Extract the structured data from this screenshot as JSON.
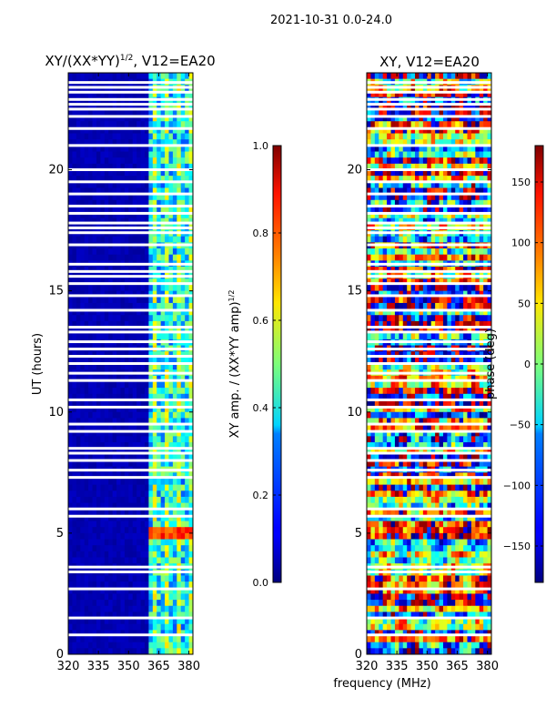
{
  "figure": {
    "suptitle": "2021-10-31 0.0-24.0",
    "xlabel_shared": "frequency (MHz)"
  },
  "chart_data": [
    {
      "type": "heatmap",
      "title_prefix": "XY/(XX*YY)",
      "title_superscript": "1/2",
      "title_suffix": ", V12=EA20",
      "ylabel": "UT (hours)",
      "xlabel": "",
      "xlim": [
        320,
        382
      ],
      "ylim": [
        0,
        24
      ],
      "xticks": [
        320,
        335,
        350,
        365,
        380
      ],
      "yticks": [
        0,
        5,
        10,
        15,
        20
      ],
      "colormap": "jet",
      "colorbar": {
        "label_main": "XY amp. / (XX*YY amp)",
        "label_superscript": "1/2",
        "range": [
          0.0,
          1.0
        ],
        "ticks": [
          "0.0",
          "0.2",
          "0.4",
          "0.6",
          "0.8",
          "1.0"
        ]
      },
      "active_band_MHz": [
        360,
        381
      ],
      "band_mean_amplitude": 0.35,
      "background_amplitude": 0.03,
      "high_amplitude_UT_range": [
        4.8,
        5.2
      ]
    },
    {
      "type": "heatmap",
      "title": "XY, V12=EA20",
      "ylabel": "",
      "xlabel": "frequency (MHz)",
      "xlim": [
        320,
        382
      ],
      "ylim": [
        0,
        24
      ],
      "xticks": [
        320,
        335,
        350,
        365,
        380
      ],
      "yticks": [
        0,
        5,
        10,
        15,
        20
      ],
      "colormap": "jet",
      "colorbar": {
        "label": "phase (deg)",
        "range": [
          -180,
          180
        ],
        "ticks": [
          "−150",
          "−100",
          "−50",
          "0",
          "50",
          "100",
          "150"
        ]
      }
    }
  ],
  "flagged_UT_hours": [
    0.8,
    1.5,
    2.7,
    3.4,
    3.6,
    5.7,
    6.0,
    7.3,
    7.6,
    8.0,
    8.3,
    8.5,
    9.2,
    9.5,
    10.2,
    10.5,
    11.3,
    11.6,
    12.0,
    12.3,
    12.6,
    12.9,
    13.3,
    13.5,
    14.2,
    14.8,
    15.3,
    15.6,
    15.8,
    16.1,
    16.9,
    17.4,
    17.6,
    17.8,
    18.2,
    18.5,
    19.0,
    19.5,
    20.0,
    21.0,
    21.7,
    22.2,
    22.5,
    22.7,
    22.9,
    23.2,
    23.4,
    23.6
  ]
}
